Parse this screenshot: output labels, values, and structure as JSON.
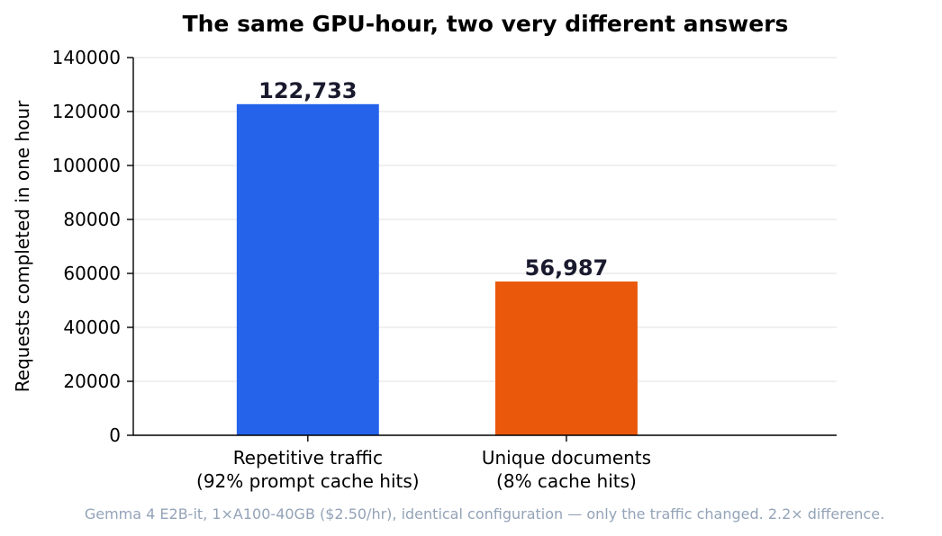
{
  "chart_data": {
    "type": "bar",
    "title": "The same GPU-hour, two very different answers",
    "ylabel": "Requests completed in one hour",
    "xlabel": "",
    "ylim": [
      0,
      140000
    ],
    "yticks": [
      0,
      20000,
      40000,
      60000,
      80000,
      100000,
      120000,
      140000
    ],
    "ytick_labels": [
      "0",
      "20000",
      "40000",
      "60000",
      "80000",
      "100000",
      "120000",
      "140000"
    ],
    "grid": "horizontal",
    "categories": [
      [
        "Repetitive traffic",
        "(92% prompt cache hits)"
      ],
      [
        "Unique documents",
        "(8% cache hits)"
      ]
    ],
    "values": [
      122733,
      56987
    ],
    "value_labels": [
      "122,733",
      "56,987"
    ],
    "colors": [
      "#2563eb",
      "#ea580c"
    ],
    "footnote": "Gemma 4 E2B-it, 1×A100-40GB ($2.50/hr), identical configuration — only the traffic changed. 2.2× difference."
  }
}
